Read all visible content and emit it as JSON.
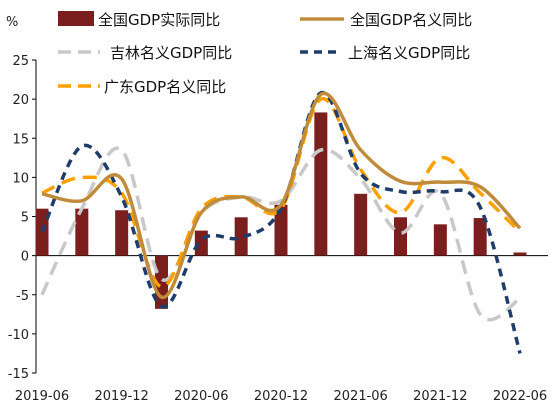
{
  "chart_data": {
    "type": "bar+line",
    "title": "",
    "unit_label": "%",
    "ylim": [
      -15,
      25
    ],
    "yticks": [
      -15,
      -10,
      -5,
      0,
      5,
      10,
      15,
      20,
      25
    ],
    "x_tick_labels": [
      "2019-06",
      "2019-12",
      "2020-06",
      "2020-12",
      "2021-06",
      "2021-12",
      "2022-06"
    ],
    "legend_placement": "top",
    "bars": {
      "name": "全国GDP实际同比",
      "color": "#7B1E1E",
      "x": [
        "2019-06",
        "2019-09",
        "2019-12",
        "2020-03",
        "2020-06",
        "2020-09",
        "2020-12",
        "2021-03",
        "2021-06",
        "2021-09",
        "2021-12",
        "2022-03",
        "2022-06"
      ],
      "values": [
        6.0,
        6.0,
        5.8,
        -6.8,
        3.2,
        4.9,
        6.5,
        18.3,
        7.9,
        4.9,
        4.0,
        4.8,
        0.4
      ]
    },
    "series": [
      {
        "name": "全国GDP名义同比",
        "color": "#C08B3A",
        "style": "solid",
        "x": [
          "2019-06",
          "2019-09",
          "2019-12",
          "2020-03",
          "2020-06",
          "2020-09",
          "2020-12",
          "2021-03",
          "2021-06",
          "2021-09",
          "2021-12",
          "2022-03",
          "2022-06"
        ],
        "values": [
          7.9,
          7.0,
          9.8,
          -5.3,
          5.5,
          7.5,
          6.5,
          20.6,
          13.5,
          9.5,
          9.4,
          8.8,
          3.5
        ]
      },
      {
        "name": "吉林名义GDP同比",
        "color": "#C8C8C8",
        "style": "dashed",
        "x": [
          "2019-06",
          "2019-09",
          "2019-12",
          "2020-03",
          "2020-06",
          "2020-09",
          "2020-12",
          "2021-03",
          "2021-06",
          "2021-09",
          "2021-12",
          "2022-03",
          "2022-06"
        ],
        "values": [
          -5.0,
          6.0,
          13.5,
          -3.0,
          5.5,
          7.5,
          7.0,
          13.5,
          9.8,
          2.9,
          8.0,
          -7.5,
          -5.5
        ]
      },
      {
        "name": "上海名义GDP同比",
        "color": "#1F3D6B",
        "style": "dashed",
        "x": [
          "2019-06",
          "2019-09",
          "2019-12",
          "2020-03",
          "2020-06",
          "2020-09",
          "2020-12",
          "2021-03",
          "2021-06",
          "2021-09",
          "2021-12",
          "2022-03",
          "2022-06"
        ],
        "values": [
          3.0,
          14.0,
          7.5,
          -6.5,
          2.0,
          2.3,
          6.0,
          20.8,
          10.5,
          8.2,
          8.2,
          6.2,
          -12.5
        ]
      },
      {
        "name": "广东GDP名义同比",
        "color": "#FFA000",
        "style": "dashed",
        "x": [
          "2019-06",
          "2019-09",
          "2019-12",
          "2020-03",
          "2020-06",
          "2020-09",
          "2020-12",
          "2021-03",
          "2021-06",
          "2021-09",
          "2021-12",
          "2022-03",
          "2022-06"
        ],
        "values": [
          8.0,
          10.0,
          8.0,
          -4.0,
          6.0,
          7.5,
          6.0,
          20.0,
          11.0,
          5.5,
          12.5,
          8.0,
          3.0
        ]
      }
    ]
  }
}
